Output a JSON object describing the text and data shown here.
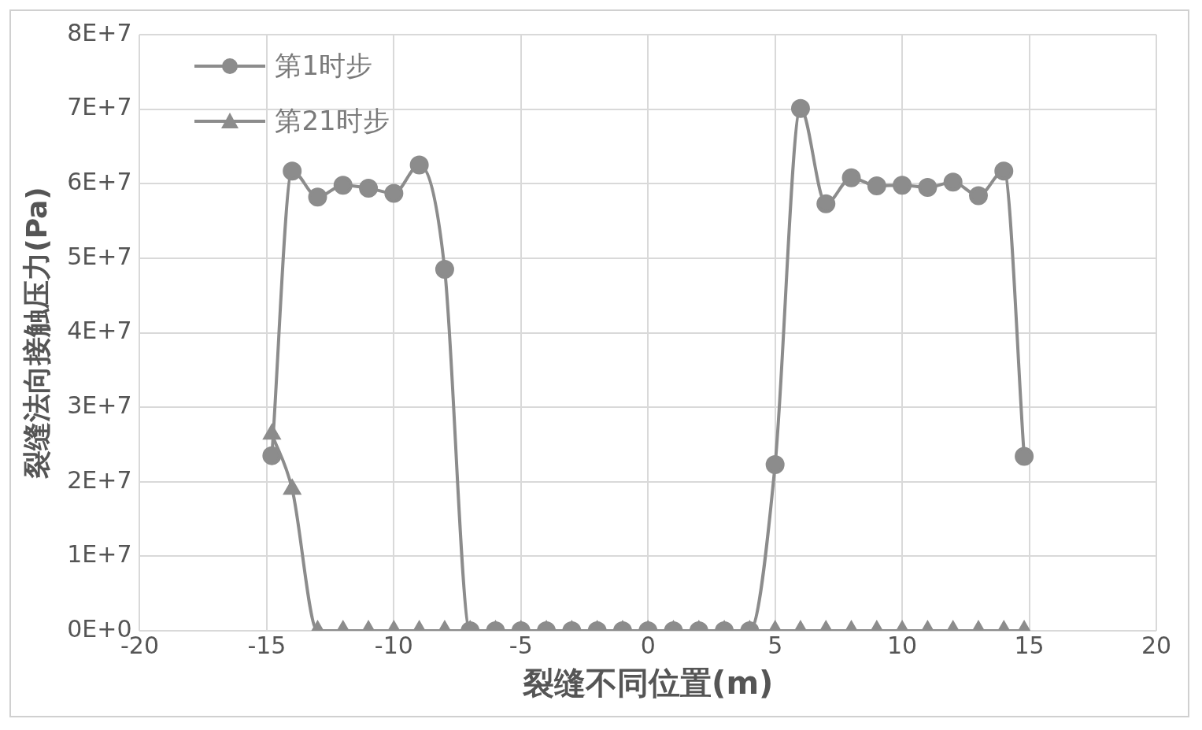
{
  "chart_data": {
    "type": "line",
    "xlabel": "裂缝不同位置(m)",
    "ylabel": "裂缝法向接触压力(Pa)",
    "xlim": [
      -20,
      20
    ],
    "xticks": [
      -20,
      -15,
      -10,
      -5,
      0,
      5,
      10,
      15,
      20
    ],
    "ylim": [
      0,
      80000000
    ],
    "yticks": [
      {
        "value": 0,
        "label": "0E+0"
      },
      {
        "value": 10000000,
        "label": "1E+7"
      },
      {
        "value": 20000000,
        "label": "2E+7"
      },
      {
        "value": 30000000,
        "label": "3E+7"
      },
      {
        "value": 40000000,
        "label": "4E+7"
      },
      {
        "value": 50000000,
        "label": "5E+7"
      },
      {
        "value": 60000000,
        "label": "6E+7"
      },
      {
        "value": 70000000,
        "label": "7E+7"
      },
      {
        "value": 80000000,
        "label": "8E+7"
      }
    ],
    "grid": true,
    "legend": "top left",
    "series": [
      {
        "name": "第1时步",
        "color": "#8c8c8c",
        "marker": "circle",
        "x": [
          -14.8,
          -14,
          -13,
          -12,
          -11,
          -10,
          -9,
          -8,
          -7,
          -6,
          -5,
          -4,
          -3,
          -2,
          -1,
          0,
          1,
          2,
          3,
          4,
          5,
          6,
          7,
          8,
          9,
          10,
          11,
          12,
          13,
          14,
          14.8
        ],
        "values": [
          23500000,
          61700000,
          58200000,
          59800000,
          59400000,
          58700000,
          62500000,
          48500000,
          0,
          0,
          0,
          0,
          0,
          0,
          0,
          0,
          0,
          0,
          0,
          0,
          22300000,
          70100000,
          57300000,
          60800000,
          59700000,
          59800000,
          59500000,
          60200000,
          58400000,
          61700000,
          23400000
        ]
      },
      {
        "name": "第21时步",
        "color": "#8c8c8c",
        "marker": "triangle",
        "x": [
          -14.8,
          -14,
          -13,
          -12,
          -11,
          -10,
          -9,
          -8,
          -7,
          -6,
          -5,
          -4,
          -3,
          -2,
          -1,
          0,
          1,
          2,
          3,
          4,
          5,
          6,
          7,
          8,
          9,
          10,
          11,
          12,
          13,
          14,
          14.8
        ],
        "values": [
          26400000,
          19000000,
          0,
          0,
          0,
          0,
          0,
          0,
          0,
          0,
          0,
          0,
          0,
          0,
          0,
          0,
          0,
          0,
          0,
          0,
          0,
          0,
          0,
          0,
          0,
          0,
          0,
          0,
          0,
          0,
          0
        ]
      }
    ]
  }
}
